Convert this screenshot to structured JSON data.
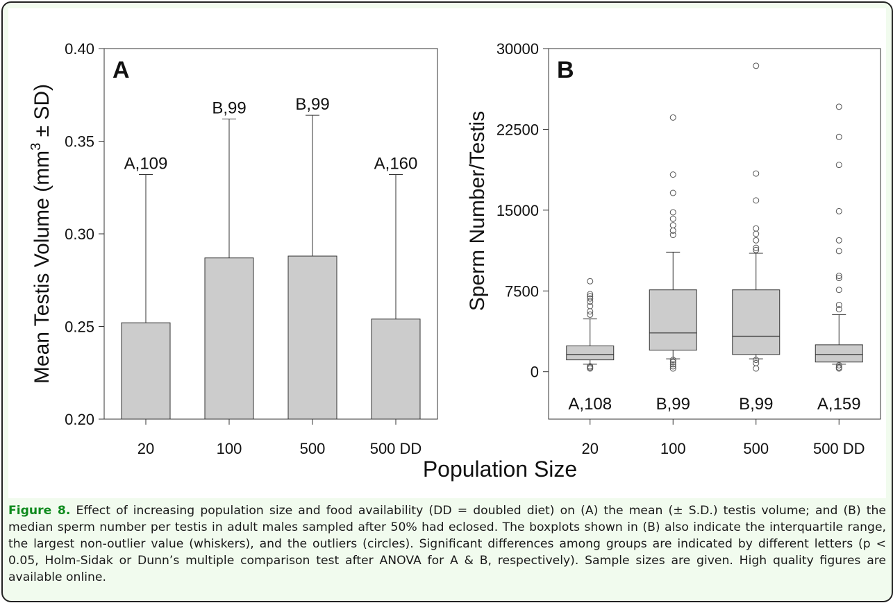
{
  "caption": {
    "label": "Figure 8.",
    "text": "Effect of increasing population size and food availability (DD = doubled diet) on (A) the mean (± S.D.) testis volume; and (B) the median sperm number per testis in adult males sampled after 50% had eclosed. The boxplots shown in (B) also indicate the interquartile range, the largest non-outlier value (whiskers), and the outliers (circles). Significant differences among groups are indicated by different letters (p < 0.05, Holm-Sidak or Dunn’s multiple comparison test after ANOVA for A & B, respectively). Sample sizes are given. High quality figures are available online."
  },
  "shared_xlabel": "Population Size",
  "colors": {
    "bar_fill": "#cccccc",
    "box_fill": "#cccccc",
    "stroke": "#333333",
    "caption_label": "#0e8a1d",
    "frame_bg": "#f1fbee"
  },
  "chart_data": [
    {
      "type": "bar",
      "panel_label": "A",
      "categories": [
        "20",
        "100",
        "500",
        "500 DD"
      ],
      "values": [
        0.252,
        0.287,
        0.288,
        0.254
      ],
      "error_sd": [
        0.08,
        0.075,
        0.076,
        0.078
      ],
      "annotations": [
        "A,109",
        "B,99",
        "B,99",
        "A,160"
      ],
      "ylabel_main": "Mean Testis Volume (mm",
      "ylabel_sup": "3",
      "ylabel_tail": " ± SD)",
      "ylim": [
        0.2,
        0.4
      ],
      "yticks": [
        "0.20",
        "0.25",
        "0.30",
        "0.35",
        "0.40"
      ],
      "grid": false
    },
    {
      "type": "box",
      "panel_label": "B",
      "categories": [
        "20",
        "100",
        "500",
        "500 DD"
      ],
      "boxes": [
        {
          "whisker_low": 700,
          "q1": 1100,
          "median": 1600,
          "q3": 2400,
          "whisker_high": 4900,
          "outliers": [
            300,
            400,
            500,
            5300,
            5600,
            6100,
            6500,
            6800,
            7000,
            7200,
            8400
          ]
        },
        {
          "whisker_low": 1200,
          "q1": 2000,
          "median": 3600,
          "q3": 7600,
          "whisker_high": 11100,
          "outliers": [
            300,
            500,
            700,
            900,
            1100,
            12700,
            13100,
            13600,
            14200,
            14800,
            16600,
            18300,
            23600
          ]
        },
        {
          "whisker_low": 1200,
          "q1": 1600,
          "median": 3300,
          "q3": 7600,
          "whisker_high": 11000,
          "outliers": [
            300,
            800,
            1100,
            11300,
            11500,
            12200,
            12800,
            13300,
            15900,
            18400,
            28400
          ]
        },
        {
          "whisker_low": 700,
          "q1": 900,
          "median": 1600,
          "q3": 2500,
          "whisker_high": 5300,
          "outliers": [
            300,
            400,
            600,
            5800,
            6200,
            7600,
            8700,
            8900,
            11200,
            12200,
            14900,
            19200,
            21800,
            24600
          ]
        }
      ],
      "annotations": [
        "A,108",
        "B,99",
        "B,99",
        "A,159"
      ],
      "ylabel": "Sperm Number/Testis",
      "ylim": [
        -4400,
        30000
      ],
      "yticks": [
        "0",
        "7500",
        "15000",
        "22500",
        "30000"
      ],
      "grid": false
    }
  ]
}
